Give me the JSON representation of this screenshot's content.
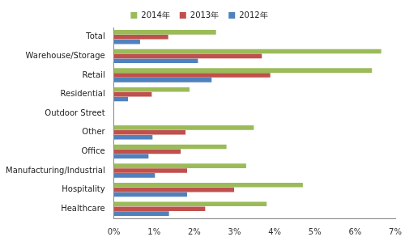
{
  "chart_data": {
    "type": "bar",
    "orientation": "horizontal",
    "grid": false,
    "legend": "top",
    "categories": [
      "Total",
      "Warehouse/Storage",
      "Retail",
      "Residential",
      "Outdoor Street",
      "Other",
      "Office",
      "Manufacturing/Industrial",
      "Hospitality",
      "Healthcare"
    ],
    "series": [
      {
        "name": "2014年",
        "color": "#9bbb59",
        "values": [
          2.54,
          6.65,
          6.42,
          1.88,
          0,
          3.48,
          2.8,
          3.29,
          4.7,
          3.8
        ]
      },
      {
        "name": "2013年",
        "color": "#c0504d",
        "values": [
          1.35,
          3.68,
          3.89,
          0.94,
          0,
          1.78,
          1.66,
          1.82,
          2.99,
          2.27
        ]
      },
      {
        "name": "2012年",
        "color": "#4f81bd",
        "values": [
          0.65,
          2.09,
          2.43,
          0.35,
          0,
          0.96,
          0.86,
          1.02,
          1.82,
          1.37
        ]
      }
    ],
    "xlim": [
      0,
      7
    ],
    "xticks": [
      {
        "value": 0,
        "label": "0%"
      },
      {
        "value": 1,
        "label": "1%"
      },
      {
        "value": 2,
        "label": "2%"
      },
      {
        "value": 3,
        "label": "3%"
      },
      {
        "value": 4,
        "label": "4%"
      },
      {
        "value": 5,
        "label": "5%"
      },
      {
        "value": 6,
        "label": "6%"
      },
      {
        "value": 7,
        "label": "7%"
      }
    ]
  }
}
